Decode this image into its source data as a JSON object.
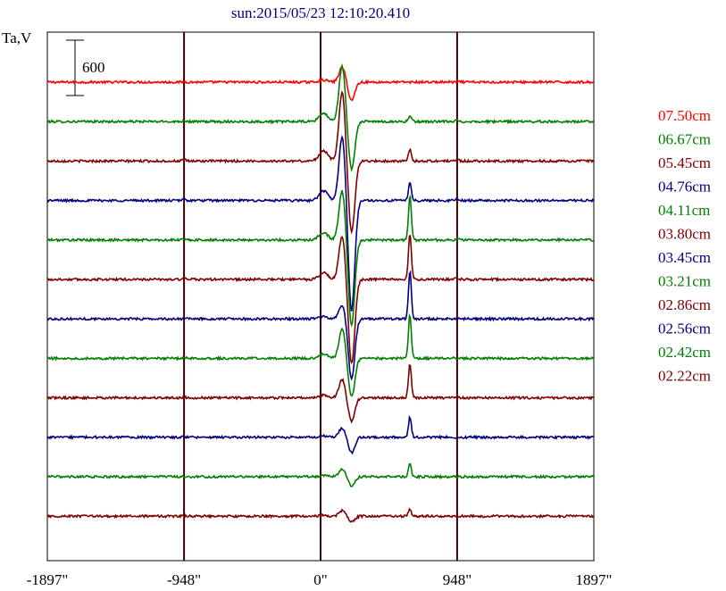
{
  "chart_data": {
    "type": "line",
    "title": "sun:2015/05/23 12:10:20.410",
    "ylabel": "Ta,V",
    "scale_bar_label": "600",
    "scale_bar_value": 600,
    "xlim": [
      -1897,
      1897
    ],
    "xticks": [
      {
        "value": -1897,
        "label": "-1897\""
      },
      {
        "value": -948,
        "label": "-948\""
      },
      {
        "value": 0,
        "label": "0\""
      },
      {
        "value": 948,
        "label": "948\""
      },
      {
        "value": 1897,
        "label": "1897\""
      }
    ],
    "vertical_lines": [
      -948,
      0,
      948
    ],
    "grid": false,
    "legend_position": "right",
    "series": [
      {
        "name": "07.50cm",
        "color": "#ff0000",
        "peak_pos": 160,
        "peak_neg": -200,
        "spot": 0
      },
      {
        "name": "06.67cm",
        "color": "#008000",
        "peak_pos": 600,
        "peak_neg": -520,
        "spot": 60
      },
      {
        "name": "05.45cm",
        "color": "#800000",
        "peak_pos": 760,
        "peak_neg": -780,
        "spot": 120
      },
      {
        "name": "04.76cm",
        "color": "#000080",
        "peak_pos": 700,
        "peak_neg": -1200,
        "spot": 200
      },
      {
        "name": "04.11cm",
        "color": "#008000",
        "peak_pos": 540,
        "peak_neg": -930,
        "spot": 480
      },
      {
        "name": "03.80cm",
        "color": "#800000",
        "peak_pos": 480,
        "peak_neg": -920,
        "spot": 500
      },
      {
        "name": "03.45cm",
        "color": "#000080",
        "peak_pos": 150,
        "peak_neg": -650,
        "spot": 520
      },
      {
        "name": "03.21cm",
        "color": "#008000",
        "peak_pos": 320,
        "peak_neg": -420,
        "spot": 470
      },
      {
        "name": "02.86cm",
        "color": "#800000",
        "peak_pos": 200,
        "peak_neg": -260,
        "spot": 360
      },
      {
        "name": "02.56cm",
        "color": "#000080",
        "peak_pos": 100,
        "peak_neg": -170,
        "spot": 220
      },
      {
        "name": "02.42cm",
        "color": "#008000",
        "peak_pos": 80,
        "peak_neg": -100,
        "spot": 140
      },
      {
        "name": "02.22cm",
        "color": "#800000",
        "peak_pos": 60,
        "peak_neg": -60,
        "spot": 80
      }
    ]
  }
}
